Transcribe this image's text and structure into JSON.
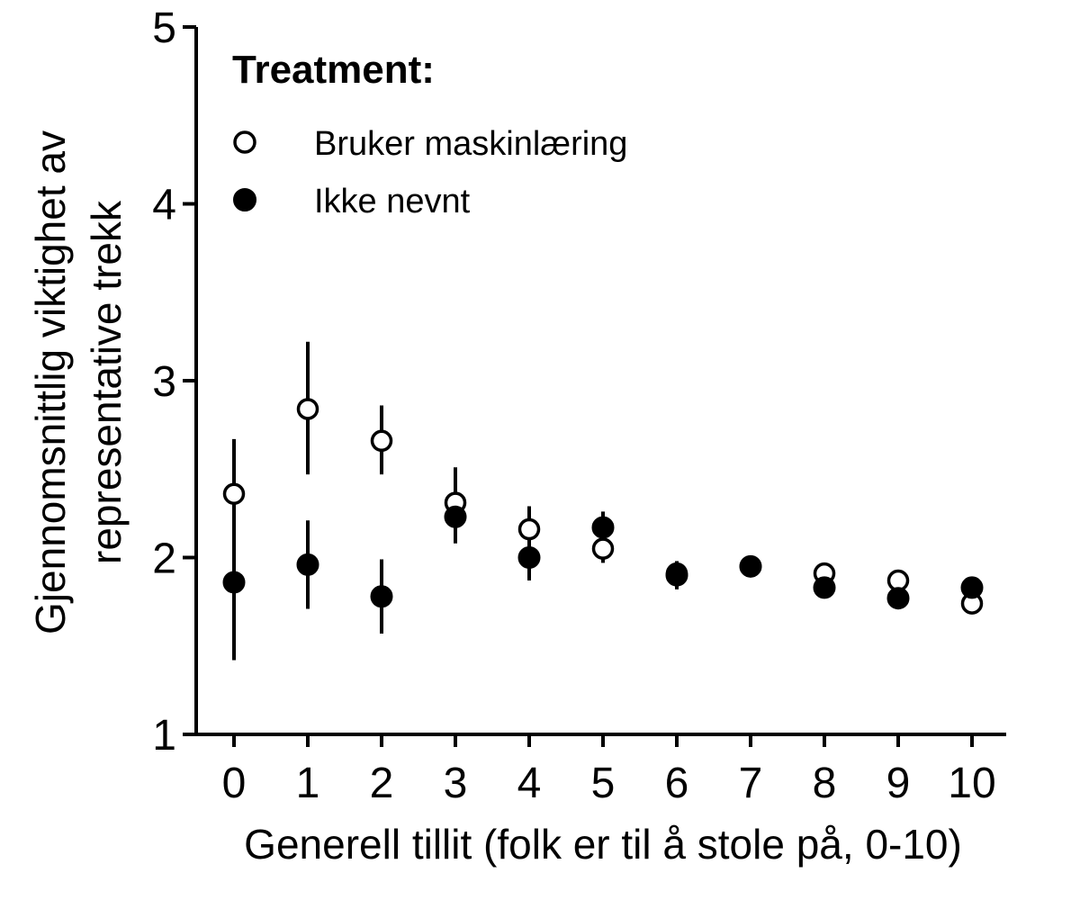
{
  "chart_data": {
    "type": "scatter",
    "title": "",
    "xlabel": "Generell tillit (folk er til å stole på, 0-10)",
    "ylabel_lines": [
      "Gjennomsnittlig viktighet av",
      "representative trekk"
    ],
    "xlim": [
      -0.5,
      10.45
    ],
    "ylim": [
      1,
      5
    ],
    "x_ticks": [
      0,
      1,
      2,
      3,
      4,
      5,
      6,
      7,
      8,
      9,
      10
    ],
    "y_ticks": [
      1,
      2,
      3,
      4,
      5
    ],
    "grid": false,
    "legend": {
      "title": "Treatment:",
      "placement": "top-left"
    },
    "x": [
      0,
      1,
      2,
      3,
      4,
      5,
      6,
      7,
      8,
      9,
      10
    ],
    "series": [
      {
        "name": "Bruker maskinlæring",
        "marker": "open-circle",
        "color": "#000000",
        "values": [
          2.36,
          2.84,
          2.66,
          2.31,
          2.16,
          2.05,
          1.91,
          1.95,
          1.91,
          1.87,
          1.74
        ],
        "ci_low": [
          1.95,
          2.47,
          2.47,
          2.12,
          2.04,
          1.97,
          1.85,
          1.92,
          1.88,
          1.84,
          1.69
        ],
        "ci_high": [
          2.67,
          3.22,
          2.86,
          2.51,
          2.29,
          2.13,
          1.97,
          1.99,
          1.95,
          1.91,
          1.79
        ]
      },
      {
        "name": "Ikke nevnt",
        "marker": "filled-circle",
        "color": "#000000",
        "values": [
          1.86,
          1.96,
          1.78,
          2.23,
          2.0,
          2.17,
          1.9,
          1.95,
          1.83,
          1.77,
          1.83
        ],
        "ci_low": [
          1.42,
          1.71,
          1.57,
          2.08,
          1.87,
          2.08,
          1.82,
          1.9,
          1.79,
          1.74,
          1.79
        ],
        "ci_high": [
          2.08,
          2.21,
          1.99,
          2.38,
          2.29,
          2.26,
          1.98,
          1.98,
          1.87,
          1.8,
          1.87
        ]
      }
    ]
  }
}
